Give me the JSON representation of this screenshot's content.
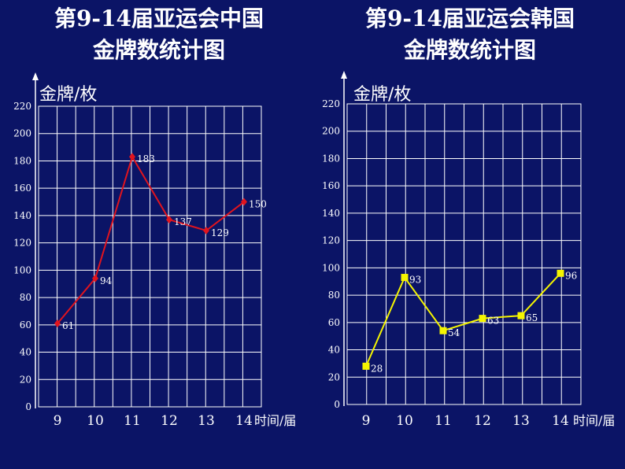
{
  "chart_data": [
    {
      "type": "line",
      "title_lines": [
        "第9-14届亚运会中国",
        "金牌数统计图"
      ],
      "ylabel": "金牌/枚",
      "xlabel": "时间/届",
      "x": [
        "9",
        "10",
        "11",
        "12",
        "13",
        "14"
      ],
      "series": [
        {
          "values": [
            61,
            94,
            183,
            137,
            129,
            150
          ],
          "color": "#e0141e",
          "marker": "diamond"
        }
      ],
      "data_labels": [
        "61",
        "94",
        "183",
        "137",
        "129",
        "150"
      ],
      "yticks": [
        "0",
        "20",
        "40",
        "60",
        "80",
        "100",
        "120",
        "140",
        "160",
        "180",
        "200",
        "220"
      ],
      "ylim": [
        0,
        220
      ],
      "grid": true
    },
    {
      "type": "line",
      "title_lines": [
        "第9-14届亚运会韩国",
        "金牌数统计图"
      ],
      "ylabel": "金牌/枚",
      "xlabel": "时间/届",
      "x": [
        "9",
        "10",
        "11",
        "12",
        "13",
        "14"
      ],
      "series": [
        {
          "values": [
            28,
            93,
            54,
            63,
            65,
            96
          ],
          "color": "#f5f500",
          "marker": "square"
        }
      ],
      "data_labels": [
        "28",
        "93",
        "54",
        "63",
        "65",
        "96"
      ],
      "yticks": [
        "0",
        "20",
        "40",
        "60",
        "80",
        "100",
        "120",
        "140",
        "160",
        "180",
        "200",
        "220"
      ],
      "ylim": [
        0,
        220
      ],
      "grid": true
    }
  ]
}
